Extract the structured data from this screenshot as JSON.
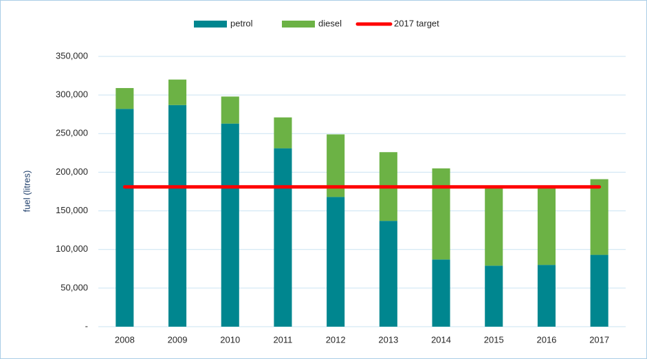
{
  "chart_data": {
    "type": "bar",
    "stacked": true,
    "y_label": "fuel (litres)",
    "categories": [
      "2008",
      "2009",
      "2010",
      "2011",
      "2012",
      "2013",
      "2014",
      "2015",
      "2016",
      "2017"
    ],
    "series": [
      {
        "name": "petrol",
        "type": "bar",
        "color": "#00868f",
        "values": [
          282000,
          287000,
          263000,
          231000,
          168000,
          137000,
          87000,
          79000,
          80000,
          93000
        ]
      },
      {
        "name": "diesel",
        "type": "bar",
        "color": "#6cb245",
        "values": [
          27000,
          33000,
          35000,
          40000,
          81000,
          89000,
          118000,
          102000,
          101000,
          98000
        ]
      },
      {
        "name": "2017 target",
        "type": "line",
        "color": "#ff0000",
        "values": [
          181000,
          181000,
          181000,
          181000,
          181000,
          181000,
          181000,
          181000,
          181000,
          181000
        ]
      }
    ],
    "ylim": [
      0,
      350000
    ],
    "yticks": [
      {
        "value": 0,
        "label": "-"
      },
      {
        "value": 50000,
        "label": "50,000"
      },
      {
        "value": 100000,
        "label": "100,000"
      },
      {
        "value": 150000,
        "label": "150,000"
      },
      {
        "value": 200000,
        "label": "200,000"
      },
      {
        "value": 250000,
        "label": "250,000"
      },
      {
        "value": 300000,
        "label": "300,000"
      },
      {
        "value": 350000,
        "label": "350,000"
      }
    ],
    "grid": true,
    "legend": "top"
  }
}
